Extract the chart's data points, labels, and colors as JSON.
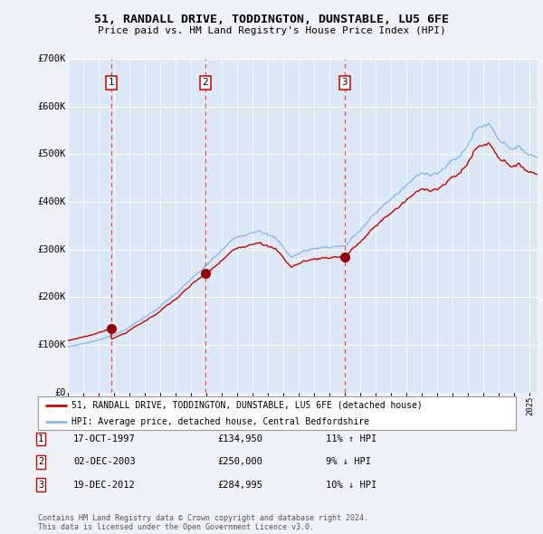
{
  "title": "51, RANDALL DRIVE, TODDINGTON, DUNSTABLE, LU5 6FE",
  "subtitle": "Price paid vs. HM Land Registry's House Price Index (HPI)",
  "ylim": [
    0,
    700000
  ],
  "xlim_start": 1995.0,
  "xlim_end": 2025.5,
  "yticks": [
    0,
    100000,
    200000,
    300000,
    400000,
    500000,
    600000,
    700000
  ],
  "ytick_labels": [
    "£0",
    "£100K",
    "£200K",
    "£300K",
    "£400K",
    "£500K",
    "£600K",
    "£700K"
  ],
  "background_color": "#eef2f8",
  "plot_background": "#dce8f5",
  "grid_color": "#ffffff",
  "sale_events": [
    {
      "num": 1,
      "year": 1997.8,
      "price": 134950,
      "date": "17-OCT-1997",
      "pct": "11%",
      "dir": "↑"
    },
    {
      "num": 2,
      "year": 2003.92,
      "price": 250000,
      "date": "02-DEC-2003",
      "pct": "9%",
      "dir": "↓"
    },
    {
      "num": 3,
      "year": 2012.97,
      "price": 284995,
      "date": "19-DEC-2012",
      "pct": "10%",
      "dir": "↓"
    }
  ],
  "legend_property": "51, RANDALL DRIVE, TODDINGTON, DUNSTABLE, LU5 6FE (detached house)",
  "legend_hpi": "HPI: Average price, detached house, Central Bedfordshire",
  "footer": "Contains HM Land Registry data © Crown copyright and database right 2024.\nThis data is licensed under the Open Government Licence v3.0.",
  "property_line_color": "#cc0000",
  "hpi_line_color": "#88bbe8",
  "sale_marker_color": "#990000",
  "vline_color": "#ee3333"
}
